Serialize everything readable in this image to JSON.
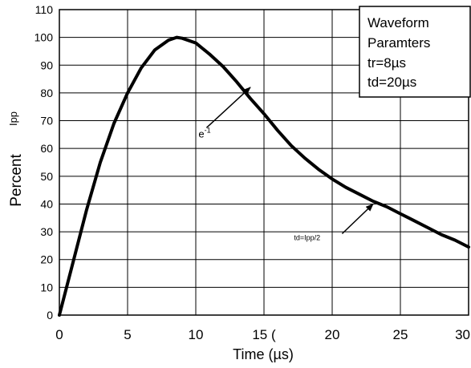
{
  "chart_data": {
    "type": "line",
    "title": "",
    "xlabel": "Time (µs)",
    "ylabel_main": "Percent",
    "ylabel_sub": "Ipp",
    "xlim": [
      0,
      30
    ],
    "ylim": [
      0,
      110
    ],
    "grid": true,
    "x_ticks": [
      {
        "value": 0,
        "label": "0"
      },
      {
        "value": 5,
        "label": "5"
      },
      {
        "value": 10,
        "label": "10"
      },
      {
        "value": 15,
        "label": "15 ("
      },
      {
        "value": 20,
        "label": "20"
      },
      {
        "value": 25,
        "label": "25"
      },
      {
        "value": 30,
        "label": "30"
      }
    ],
    "y_ticks": [
      0,
      10,
      20,
      30,
      40,
      50,
      60,
      70,
      80,
      90,
      100,
      110
    ],
    "series": [
      {
        "color": "#000000",
        "x": [
          0,
          1,
          2,
          3,
          4,
          5,
          6,
          7,
          8,
          8.6,
          9,
          10,
          11,
          12,
          13,
          14,
          15,
          16,
          17,
          18,
          19,
          20,
          21,
          22,
          23,
          24,
          25,
          26,
          27,
          28,
          29,
          30
        ],
        "y": [
          0,
          19,
          38,
          55,
          69,
          80,
          89,
          95.5,
          99,
          100,
          99.7,
          98,
          94,
          89.5,
          84,
          78,
          72.5,
          66.5,
          61,
          56.5,
          52.5,
          49,
          46,
          43.5,
          41,
          39,
          36.5,
          34,
          31.5,
          29,
          27,
          24.5
        ]
      }
    ],
    "legend_box": {
      "position": "top-right",
      "lines": [
        "Waveform",
        "Paramters",
        "tr=8µs",
        "td=20µs"
      ]
    },
    "annotations": [
      {
        "label": "e",
        "superscript": "-1",
        "x": 10.2,
        "y": 64,
        "arrow_to_x": 14,
        "arrow_to_y": 82
      },
      {
        "label": "td=Ipp/2",
        "x": 17.2,
        "y": 27,
        "arrow_to_x": 23,
        "arrow_to_y": 40
      }
    ]
  }
}
